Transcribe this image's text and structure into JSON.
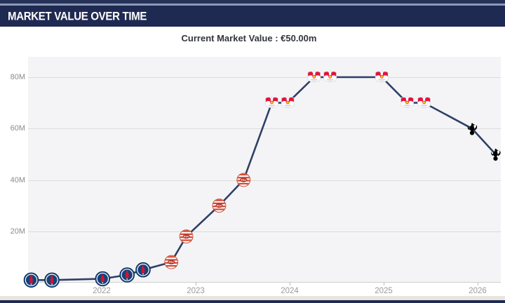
{
  "header": {
    "title": "MARKET VALUE OVER TIME"
  },
  "subtitle": "Current Market Value : €50.00m",
  "chart_data": {
    "type": "line",
    "title": "Current Market Value : €50.00m",
    "unit": "EUR millions",
    "x_ticks": [
      "2022",
      "2023",
      "2024",
      "2025",
      "2026"
    ],
    "y_tick_labels": [
      "20M",
      "40M",
      "60M",
      "80M"
    ],
    "y_tick_values": [
      20,
      40,
      60,
      80
    ],
    "ylim": [
      0,
      88
    ],
    "xlim_years": [
      2021.05,
      2026.3
    ],
    "grid": "horizontal-only",
    "legend": "none",
    "line_color": "#2f4066",
    "series": [
      {
        "name": "Market value",
        "points": [
          {
            "date": "Mar 2021",
            "year": 2021.25,
            "value_m": 1.0,
            "club": "psg"
          },
          {
            "date": "Jun 2021",
            "year": 2021.47,
            "value_m": 1.0,
            "club": "psg"
          },
          {
            "date": "Dec 2021",
            "year": 2022.01,
            "value_m": 1.5,
            "club": "psg"
          },
          {
            "date": "Mar 2022",
            "year": 2022.27,
            "value_m": 3.0,
            "club": "psg"
          },
          {
            "date": "Jun 2022",
            "year": 2022.44,
            "value_m": 5.0,
            "club": "psg"
          },
          {
            "date": "Sep 2022",
            "year": 2022.74,
            "value_m": 8.0,
            "club": "psv"
          },
          {
            "date": "Nov 2022",
            "year": 2022.9,
            "value_m": 18.0,
            "club": "psv"
          },
          {
            "date": "Mar 2023",
            "year": 2023.25,
            "value_m": 30.0,
            "club": "psv"
          },
          {
            "date": "Jun 2023",
            "year": 2023.51,
            "value_m": 40.0,
            "club": "psv"
          },
          {
            "date": "Oct 2023",
            "year": 2023.81,
            "value_m": 70.0,
            "club": "rbl"
          },
          {
            "date": "Dec 2023",
            "year": 2023.98,
            "value_m": 70.0,
            "club": "rbl"
          },
          {
            "date": "Apr 2024",
            "year": 2024.26,
            "value_m": 80.0,
            "club": "rbl"
          },
          {
            "date": "Jun 2024",
            "year": 2024.43,
            "value_m": 80.0,
            "club": "rbl"
          },
          {
            "date": "Dec 2024",
            "year": 2024.98,
            "value_m": 80.0,
            "club": "rbl"
          },
          {
            "date": "Apr 2025",
            "year": 2025.25,
            "value_m": 70.0,
            "club": "rbl"
          },
          {
            "date": "Jun 2025",
            "year": 2025.43,
            "value_m": 70.0,
            "club": "rbl"
          },
          {
            "date": "Dec 2025",
            "year": 2025.94,
            "value_m": 60.0,
            "club": "spurs"
          },
          {
            "date": "Mar 2026",
            "year": 2026.19,
            "value_m": 50.0,
            "club": "spurs"
          }
        ]
      }
    ],
    "club_icons": {
      "psg": "psg-crest-icon",
      "psv": "psv-crest-icon",
      "rbl": "rb-leipzig-crest-icon",
      "spurs": "tottenham-crest-icon"
    },
    "colors": {
      "accent_navy": "#1f2a52",
      "psg_navy": "#15427a",
      "psg_red": "#d8122e",
      "psv_red": "#d6452f",
      "rbl_red": "#e1133d",
      "rbl_yellow": "#f5d100",
      "spurs_navy": "#1b2a50"
    }
  }
}
